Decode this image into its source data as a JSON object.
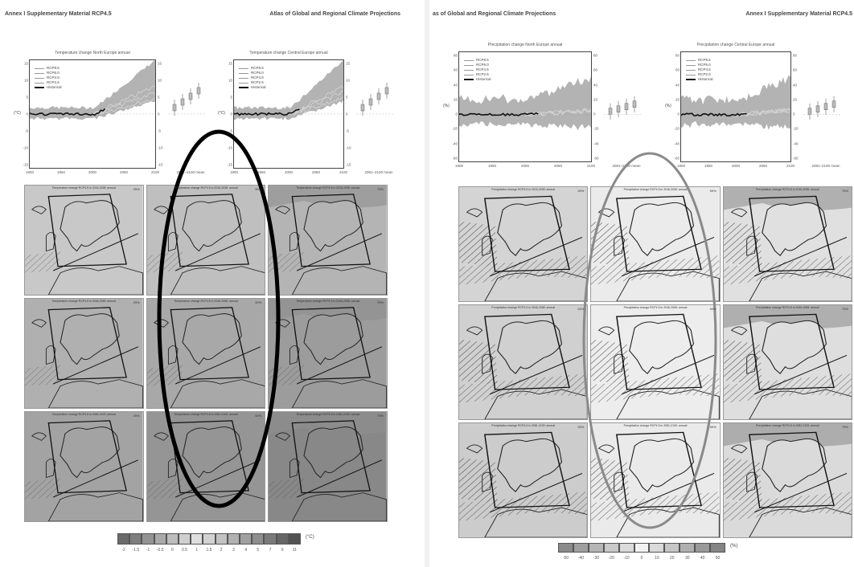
{
  "left_page": {
    "header_left": "Annex I Supplementary Material RCP4.5",
    "header_right": "Atlas of Global and Regional Climate Projections",
    "charts": [
      {
        "title": "Temperature change North Europe annual",
        "ylabel": "(°C)"
      },
      {
        "title": "Temperature change Central Europe annual",
        "ylabel": "(°C)"
      }
    ],
    "legend": [
      "RCP8.5",
      "RCP6.0",
      "RCP4.5",
      "RCP2.6",
      "Historical"
    ],
    "y_ticks": [
      "15",
      "10",
      "5",
      "0",
      "-5",
      "-10",
      "-15"
    ],
    "x_ticks": [
      "1900",
      "1950",
      "2000",
      "2050",
      "2100"
    ],
    "x_extra": "2081–2100 mean",
    "maps": [
      {
        "title": "Temperature change RCP4.5 in 2016-2035: annual",
        "pct": "25%",
        "fill": "#c8c8c8"
      },
      {
        "title": "Temperature change RCP4.5 in 2016-2035: annual",
        "pct": "50%",
        "fill": "#bfbfbf"
      },
      {
        "title": "Temperature change RCP4.5 in 2016-2035: annual",
        "pct": "75%",
        "fill": "#b4b4b4"
      },
      {
        "title": "Temperature change RCP4.5 in 2046-2065: annual",
        "pct": "25%",
        "fill": "#b0b0b0"
      },
      {
        "title": "Temperature change RCP4.5 in 2046-2065: annual",
        "pct": "50%",
        "fill": "#a8a8a8"
      },
      {
        "title": "Temperature change RCP4.5 in 2046-2065: annual",
        "pct": "75%",
        "fill": "#9c9c9c"
      },
      {
        "title": "Temperature change RCP4.5 in 2081-2100: annual",
        "pct": "25%",
        "fill": "#a3a3a3"
      },
      {
        "title": "Temperature change RCP4.5 in 2081-2100: annual",
        "pct": "50%",
        "fill": "#959595"
      },
      {
        "title": "Temperature change RCP4.5 in 2081-2100: annual",
        "pct": "75%",
        "fill": "#888888"
      }
    ],
    "colorbar": {
      "labels": [
        "-2",
        "-1.5",
        "-1",
        "-0.5",
        "0",
        "0.5",
        "1",
        "1.5",
        "2",
        "3",
        "4",
        "5",
        "7",
        "9",
        "11"
      ],
      "unit": "(°C)",
      "colors": [
        "#6a6a6a",
        "#7e7e7e",
        "#939393",
        "#a9a9a9",
        "#bdbdbd",
        "#cfcfcf",
        "#dedede",
        "#d2d2d2",
        "#c2c2c2",
        "#b1b1b1",
        "#a0a0a0",
        "#8e8e8e",
        "#7a7a7a",
        "#666666",
        "#525252"
      ]
    }
  },
  "right_page": {
    "header_left": "as of Global and Regional Climate Projections",
    "header_right": "Annex I Supplementary Material RCP4.5",
    "charts": [
      {
        "title": "Precipitation change North Europe annual",
        "ylabel": "(%)"
      },
      {
        "title": "Precipitation change Central Europe annual",
        "ylabel": "(%)"
      }
    ],
    "legend": [
      "RCP8.5",
      "RCP6.0",
      "RCP4.5",
      "RCP2.6",
      "Historical"
    ],
    "y_ticks": [
      "80",
      "60",
      "40",
      "20",
      "0",
      "-20",
      "-40",
      "-60"
    ],
    "x_ticks": [
      "1900",
      "1950",
      "2000",
      "2050",
      "2100"
    ],
    "x_extra": "2081–2100 mean",
    "maps": [
      {
        "title": "Precipitation change RCP4.5 in 2016-2035: annual",
        "pct": "25%",
        "fill": "#d4d4d4"
      },
      {
        "title": "Precipitation change RCP4.5 in 2016-2035: annual",
        "pct": "50%",
        "fill": "#ebebeb"
      },
      {
        "title": "Precipitation change RCP4.5 in 2016-2035: annual",
        "pct": "75%",
        "fill": "#e0e0e0"
      },
      {
        "title": "Precipitation change RCP4.5 in 2046-2065: annual",
        "pct": "25%",
        "fill": "#d0d0d0"
      },
      {
        "title": "Precipitation change RCP4.5 in 2046-2065: annual",
        "pct": "50%",
        "fill": "#ededed"
      },
      {
        "title": "Precipitation change RCP4.5 in 2046-2065: annual",
        "pct": "75%",
        "fill": "#dedede"
      },
      {
        "title": "Precipitation change RCP4.5 in 2081-2100: annual",
        "pct": "25%",
        "fill": "#cccccc"
      },
      {
        "title": "Precipitation change RCP4.5 in 2081-2100: annual",
        "pct": "50%",
        "fill": "#eaeaea"
      },
      {
        "title": "Precipitation change RCP4.5 in 2081-2100: annual",
        "pct": "75%",
        "fill": "#dadada"
      }
    ],
    "colorbar": {
      "labels": [
        "-50",
        "-40",
        "-30",
        "-20",
        "-10",
        "0",
        "10",
        "20",
        "30",
        "40",
        "50"
      ],
      "unit": "(%)",
      "colors": [
        "#8a8a8a",
        "#a0a0a0",
        "#b5b5b5",
        "#c9c9c9",
        "#dbdbdb",
        "#f2f2f2",
        "#dadada",
        "#c6c6c6",
        "#b0b0b0",
        "#9a9a9a",
        "#848484"
      ]
    }
  },
  "annotations": {
    "left_ellipse_color": "#000000",
    "right_ellipse_color": "#8a8a8a"
  }
}
